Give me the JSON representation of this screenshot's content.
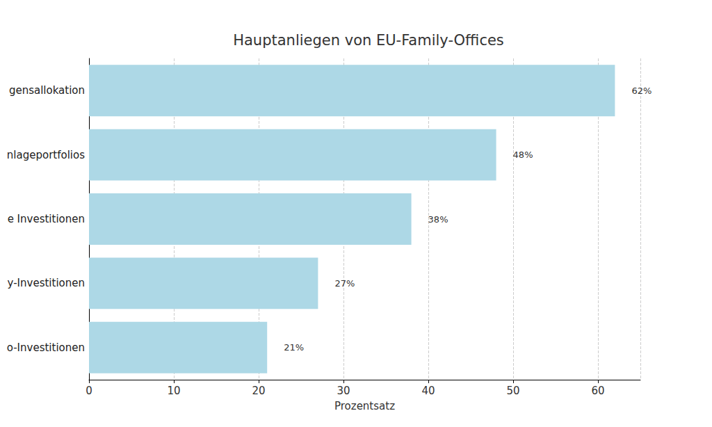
{
  "chart_data": {
    "type": "bar",
    "orientation": "horizontal",
    "title": "Hauptanliegen von EU-Family-Offices",
    "x_label": "Prozentsatz",
    "categories": [
      "gensallokation",
      "nlageportfolios",
      "e Investitionen",
      "y-Investitionen",
      "o-Investitionen"
    ],
    "values": [
      62,
      48,
      38,
      27,
      21
    ],
    "value_labels": [
      "62%",
      "48%",
      "38%",
      "27%",
      "21%"
    ],
    "data_labels": true,
    "color": "#add8e6",
    "xlim": [
      0,
      65
    ],
    "xticks": [
      0,
      10,
      20,
      30,
      40,
      50,
      60
    ],
    "grid": true
  }
}
